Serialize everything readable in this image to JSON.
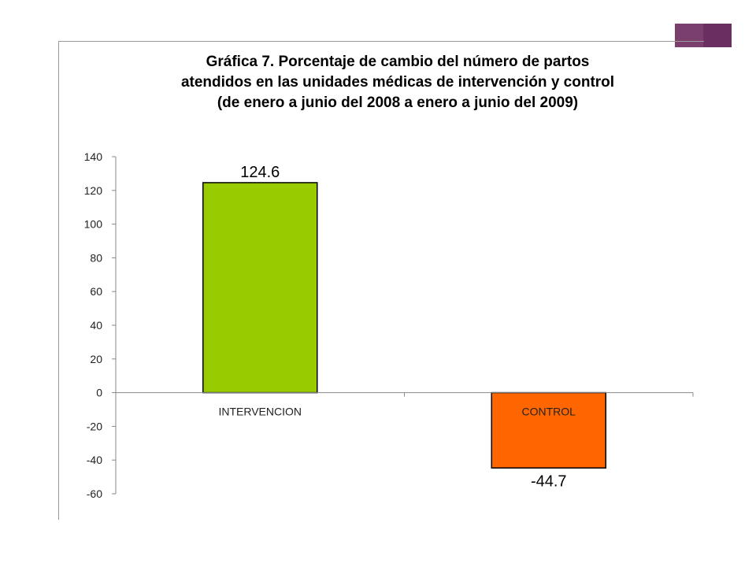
{
  "slide": {
    "accent_colors": [
      "#7B3F6E",
      "#6A2E61"
    ]
  },
  "chart_data": {
    "type": "bar",
    "title_lines": [
      "Gráfica 7.  Porcentaje de  cambio  del  número de partos",
      "atendidos en las unidades médicas de intervención y control",
      "(de enero a junio del 2008  a enero a junio del 2009)"
    ],
    "categories": [
      "INTERVENCION",
      "CONTROL"
    ],
    "values": [
      124.6,
      -44.7
    ],
    "data_labels": [
      "124.6",
      "-44.7"
    ],
    "bar_colors": [
      "#99CC00",
      "#FF6600"
    ],
    "ylim": [
      -60,
      140
    ],
    "yticks": [
      140,
      120,
      100,
      80,
      60,
      40,
      20,
      0,
      -20,
      -40,
      -60
    ],
    "grid": false,
    "legend": "none"
  }
}
